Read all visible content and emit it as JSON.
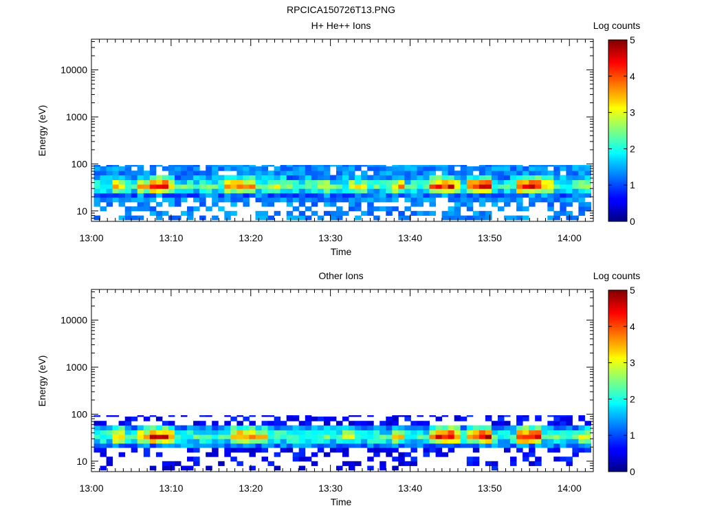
{
  "figure_title": "RPCICA150726T13.PNG",
  "chart_data": [
    {
      "type": "heatmap",
      "title": "H+ He++ Ions",
      "xlabel": "Time",
      "ylabel": "Energy (eV)",
      "x_ticks": [
        "13:00",
        "13:10",
        "13:20",
        "13:30",
        "13:40",
        "13:50",
        "14:00"
      ],
      "xlim": [
        "13:00",
        "14:03"
      ],
      "y_scale": "log",
      "y_ticks": [
        "10",
        "100",
        "1000",
        "10000"
      ],
      "ylim": [
        6,
        45000
      ],
      "colorbar": {
        "label": "Log counts",
        "ticks": [
          "0",
          "1",
          "2",
          "3",
          "4",
          "5"
        ],
        "range": [
          0,
          5
        ]
      },
      "energy_bins": [
        6.5,
        8,
        10,
        12.5,
        15.5,
        19.5,
        24,
        30,
        37,
        46,
        58,
        72,
        89
      ],
      "intensity_profile": {
        "peak_energy": 31,
        "upper_cutoff": 95,
        "background": 1.3,
        "spikes": [
          {
            "time": "13:03",
            "level": 3.6
          },
          {
            "time": "13:06",
            "level": 3.4
          },
          {
            "time": "13:08",
            "level": 4.4
          },
          {
            "time": "13:09",
            "level": 3.6
          },
          {
            "time": "13:17",
            "level": 3.6
          },
          {
            "time": "13:19",
            "level": 3.9
          },
          {
            "time": "13:23",
            "level": 2.8
          },
          {
            "time": "13:29",
            "level": 2.8
          },
          {
            "time": "13:33",
            "level": 2.9
          },
          {
            "time": "13:38",
            "level": 3.5
          },
          {
            "time": "13:43",
            "level": 3.9
          },
          {
            "time": "13:44",
            "level": 4.4
          },
          {
            "time": "13:45",
            "level": 3.6
          },
          {
            "time": "13:48",
            "level": 3.9
          },
          {
            "time": "13:49",
            "level": 4.5
          },
          {
            "time": "13:54",
            "level": 4.2
          },
          {
            "time": "13:55",
            "level": 4.4
          },
          {
            "time": "13:57",
            "level": 3.4
          },
          {
            "time": "14:02",
            "level": 3.0
          }
        ]
      }
    },
    {
      "type": "heatmap",
      "title": "Other Ions",
      "xlabel": "Time",
      "ylabel": "Energy (eV)",
      "x_ticks": [
        "13:00",
        "13:10",
        "13:20",
        "13:30",
        "13:40",
        "13:50",
        "14:00"
      ],
      "xlim": [
        "13:00",
        "14:03"
      ],
      "y_scale": "log",
      "y_ticks": [
        "10",
        "100",
        "1000",
        "10000"
      ],
      "ylim": [
        6,
        45000
      ],
      "colorbar": {
        "label": "Log counts",
        "ticks": [
          "0",
          "1",
          "2",
          "3",
          "4",
          "5"
        ],
        "range": [
          0,
          5
        ]
      },
      "energy_bins": [
        6.5,
        8,
        10,
        12.5,
        15.5,
        19.5,
        24,
        30,
        37,
        46,
        58,
        72,
        89
      ],
      "intensity_profile": {
        "peak_energy": 31,
        "upper_cutoff": 95,
        "background": 0.6,
        "spikes": [
          {
            "time": "13:03",
            "level": 3.6
          },
          {
            "time": "13:06",
            "level": 3.5
          },
          {
            "time": "13:08",
            "level": 4.4
          },
          {
            "time": "13:09",
            "level": 3.8
          },
          {
            "time": "13:18",
            "level": 3.6
          },
          {
            "time": "13:19",
            "level": 3.9
          },
          {
            "time": "13:21",
            "level": 3.2
          },
          {
            "time": "13:32",
            "level": 3.0
          },
          {
            "time": "13:38",
            "level": 3.2
          },
          {
            "time": "13:43",
            "level": 4.0
          },
          {
            "time": "13:44",
            "level": 4.5
          },
          {
            "time": "13:45",
            "level": 3.8
          },
          {
            "time": "13:48",
            "level": 3.8
          },
          {
            "time": "13:49",
            "level": 4.6
          },
          {
            "time": "13:54",
            "level": 4.4
          },
          {
            "time": "13:55",
            "level": 4.7
          },
          {
            "time": "14:02",
            "level": 2.8
          }
        ]
      }
    }
  ]
}
